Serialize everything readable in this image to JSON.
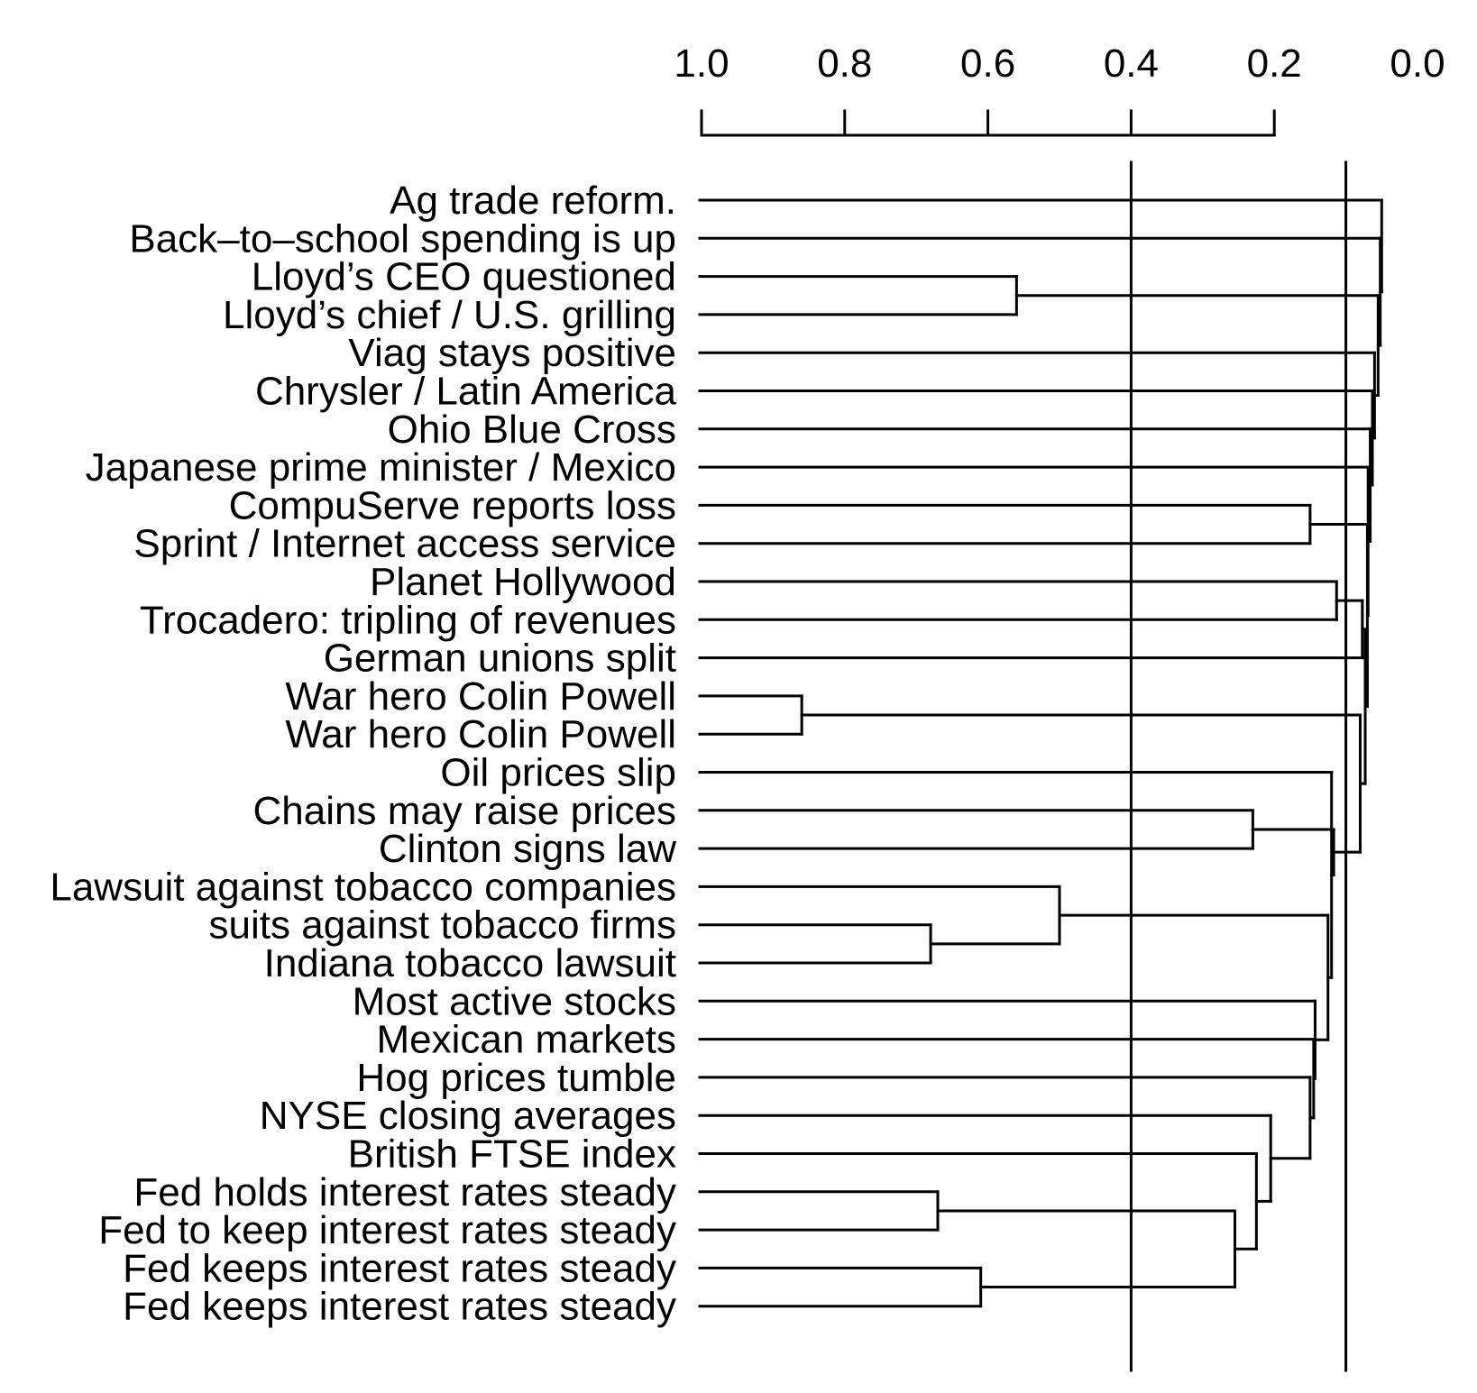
{
  "chart_data": {
    "type": "dendrogram",
    "axis": {
      "ticks": [
        1.0,
        0.8,
        0.6,
        0.4,
        0.2,
        0.0
      ],
      "tick_labels": [
        "1.0",
        "0.8",
        "0.6",
        "0.4",
        "0.2",
        "0.0"
      ],
      "range": [
        1.0,
        0.0
      ],
      "position": "top"
    },
    "cut_lines": [
      0.4,
      0.1
    ],
    "leaves": [
      "Ag trade reform.",
      "Back–to–school spending is up",
      "Lloyd’s CEO questioned",
      "Lloyd’s chief / U.S. grilling",
      "Viag stays positive",
      "Chrysler / Latin America",
      "Ohio Blue Cross",
      "Japanese prime minister / Mexico",
      "CompuServe reports loss",
      "Sprint / Internet access service",
      "Planet Hollywood",
      "Trocadero: tripling of revenues",
      "German unions split",
      "War hero Colin Powell",
      "War hero Colin Powell",
      "Oil prices slip",
      "Chains may raise prices",
      "Clinton signs law",
      "Lawsuit against tobacco companies",
      "suits against tobacco firms",
      "Indiana tobacco lawsuit",
      "Most active stocks",
      "Mexican markets",
      "Hog prices tumble",
      "NYSE closing averages",
      "British FTSE index",
      "Fed holds interest rates steady",
      "Fed to keep interest rates steady",
      "Fed keeps interest rates steady",
      "Fed keeps interest rates steady"
    ],
    "merges": [
      {
        "id": "n1",
        "a": 13,
        "b": 14,
        "height": 0.86
      },
      {
        "id": "n2",
        "a": 28,
        "b": 29,
        "height": 0.61
      },
      {
        "id": "n3",
        "a": 26,
        "b": 27,
        "height": 0.67
      },
      {
        "id": "n4",
        "a": 19,
        "b": 20,
        "height": 0.68
      },
      {
        "id": "n5",
        "a": 2,
        "b": 3,
        "height": 0.56
      },
      {
        "id": "n6",
        "a": 18,
        "b": "n4",
        "height": 0.5
      },
      {
        "id": "n7",
        "a": "n3",
        "b": "n2",
        "height": 0.255
      },
      {
        "id": "n8",
        "a": 16,
        "b": 17,
        "height": 0.23
      },
      {
        "id": "n9",
        "a": 25,
        "b": "n7",
        "height": 0.225
      },
      {
        "id": "n10",
        "a": 24,
        "b": "n9",
        "height": 0.205
      },
      {
        "id": "n11",
        "a": 8,
        "b": 9,
        "height": 0.15
      },
      {
        "id": "n12",
        "a": 23,
        "b": "n10",
        "height": 0.15
      },
      {
        "id": "n13",
        "a": 22,
        "b": "n12",
        "height": 0.145
      },
      {
        "id": "n14",
        "a": 21,
        "b": "n13",
        "height": 0.143
      },
      {
        "id": "n15",
        "a": "n6",
        "b": "n14",
        "height": 0.125
      },
      {
        "id": "n16",
        "a": 15,
        "b": "n15",
        "height": 0.12
      },
      {
        "id": "n17",
        "a": "n8",
        "b": "n16",
        "height": 0.117
      },
      {
        "id": "n18",
        "a": 10,
        "b": 11,
        "height": 0.113
      },
      {
        "id": "n19",
        "a": 12,
        "b": "n18",
        "height": 0.077
      },
      {
        "id": "n20",
        "a": "n1",
        "b": "n17",
        "height": 0.08
      },
      {
        "id": "n21",
        "a": "n19",
        "b": "n20",
        "height": 0.073
      },
      {
        "id": "n22",
        "a": "n11",
        "b": "n21",
        "height": 0.07
      },
      {
        "id": "n23",
        "a": 7,
        "b": "n22",
        "height": 0.069
      },
      {
        "id": "n24",
        "a": 6,
        "b": "n23",
        "height": 0.066
      },
      {
        "id": "n25",
        "a": 5,
        "b": "n24",
        "height": 0.063
      },
      {
        "id": "n26",
        "a": 4,
        "b": "n25",
        "height": 0.06
      },
      {
        "id": "n27",
        "a": "n5",
        "b": "n26",
        "height": 0.055
      },
      {
        "id": "n28",
        "a": 1,
        "b": "n27",
        "height": 0.052
      },
      {
        "id": "n29",
        "a": 0,
        "b": "n28",
        "height": 0.05
      }
    ]
  }
}
